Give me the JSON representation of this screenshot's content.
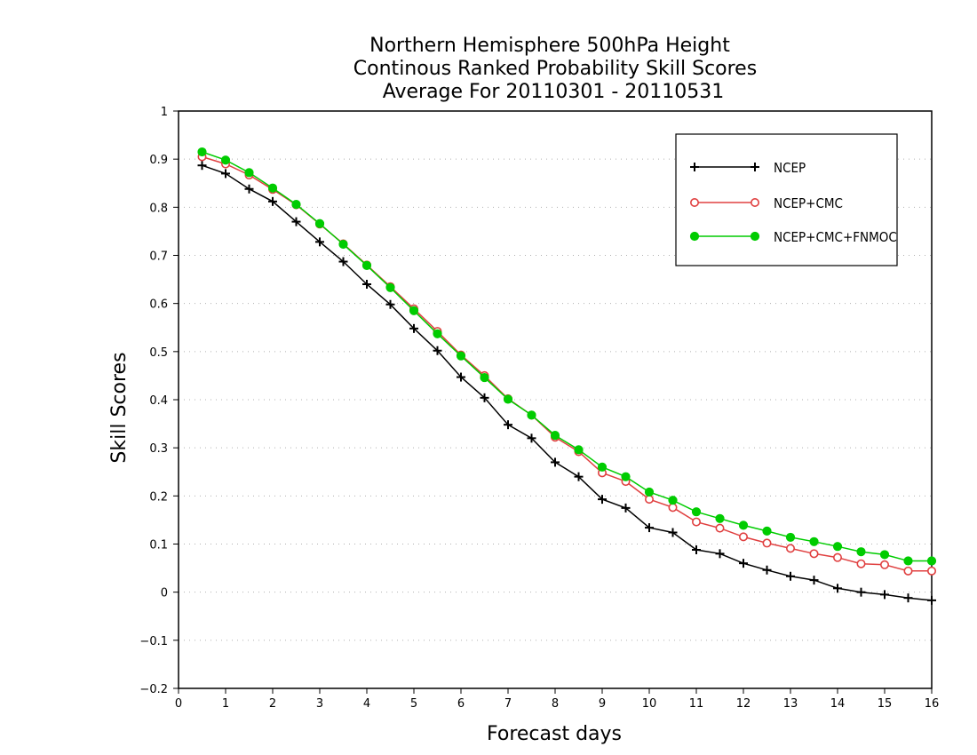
{
  "chart_data": {
    "type": "line",
    "title_lines": [
      "Northern Hemisphere 500hPa Height",
      "Continous Ranked Probability Skill Scores",
      "Average For 20110301 - 20110531"
    ],
    "xlabel": "Forecast days",
    "ylabel": "Skill Scores",
    "xlim": [
      0,
      16
    ],
    "ylim": [
      -0.2,
      1
    ],
    "xticks": [
      0,
      1,
      2,
      3,
      4,
      5,
      6,
      7,
      8,
      9,
      10,
      11,
      12,
      13,
      14,
      15,
      16
    ],
    "yticks": [
      -0.2,
      -0.1,
      0,
      0.1,
      0.2,
      0.3,
      0.4,
      0.5,
      0.6,
      0.7,
      0.8,
      0.9,
      1
    ],
    "xtick_labels": [
      "0",
      "1",
      "2",
      "3",
      "4",
      "5",
      "6",
      "7",
      "8",
      "9",
      "10",
      "11",
      "12",
      "13",
      "14",
      "15",
      "16"
    ],
    "ytick_labels": [
      "−0.2",
      "−0.1",
      "0",
      "0.1",
      "0.2",
      "0.3",
      "0.4",
      "0.5",
      "0.6",
      "0.7",
      "0.8",
      "0.9",
      "1"
    ],
    "grid": true,
    "legend_position": "top-right",
    "x": [
      0.5,
      1.0,
      1.5,
      2.0,
      2.5,
      3.0,
      3.5,
      4.0,
      4.5,
      5.0,
      5.5,
      6.0,
      6.5,
      7.0,
      7.5,
      8.0,
      8.5,
      9.0,
      9.5,
      10.0,
      10.5,
      11.0,
      11.5,
      12.0,
      12.5,
      13.0,
      13.5,
      14.0,
      14.5,
      15.0,
      15.5,
      16.0
    ],
    "series": [
      {
        "name": "NCEP",
        "color": "#000000",
        "marker": "plus",
        "values": [
          0.887,
          0.87,
          0.838,
          0.812,
          0.77,
          0.728,
          0.687,
          0.64,
          0.598,
          0.548,
          0.502,
          0.447,
          0.404,
          0.348,
          0.32,
          0.27,
          0.24,
          0.193,
          0.175,
          0.134,
          0.124,
          0.088,
          0.08,
          0.06,
          0.046,
          0.033,
          0.025,
          0.008,
          0.0,
          -0.005,
          -0.012,
          -0.017
        ]
      },
      {
        "name": "NCEP+CMC",
        "color": "#e04040",
        "marker": "open-circle",
        "values": [
          0.905,
          0.89,
          0.867,
          0.837,
          0.805,
          0.765,
          0.724,
          0.68,
          0.635,
          0.589,
          0.542,
          0.493,
          0.45,
          0.402,
          0.368,
          0.322,
          0.292,
          0.248,
          0.23,
          0.193,
          0.176,
          0.146,
          0.133,
          0.115,
          0.102,
          0.091,
          0.08,
          0.072,
          0.059,
          0.057,
          0.044,
          0.044
        ]
      },
      {
        "name": "NCEP+CMC+FNMOC",
        "color": "#00cc00",
        "marker": "filled-circle",
        "values": [
          0.915,
          0.898,
          0.872,
          0.84,
          0.806,
          0.766,
          0.723,
          0.679,
          0.633,
          0.585,
          0.537,
          0.491,
          0.446,
          0.401,
          0.368,
          0.326,
          0.296,
          0.26,
          0.24,
          0.208,
          0.191,
          0.167,
          0.153,
          0.139,
          0.127,
          0.114,
          0.105,
          0.095,
          0.084,
          0.078,
          0.065,
          0.065
        ]
      }
    ]
  }
}
